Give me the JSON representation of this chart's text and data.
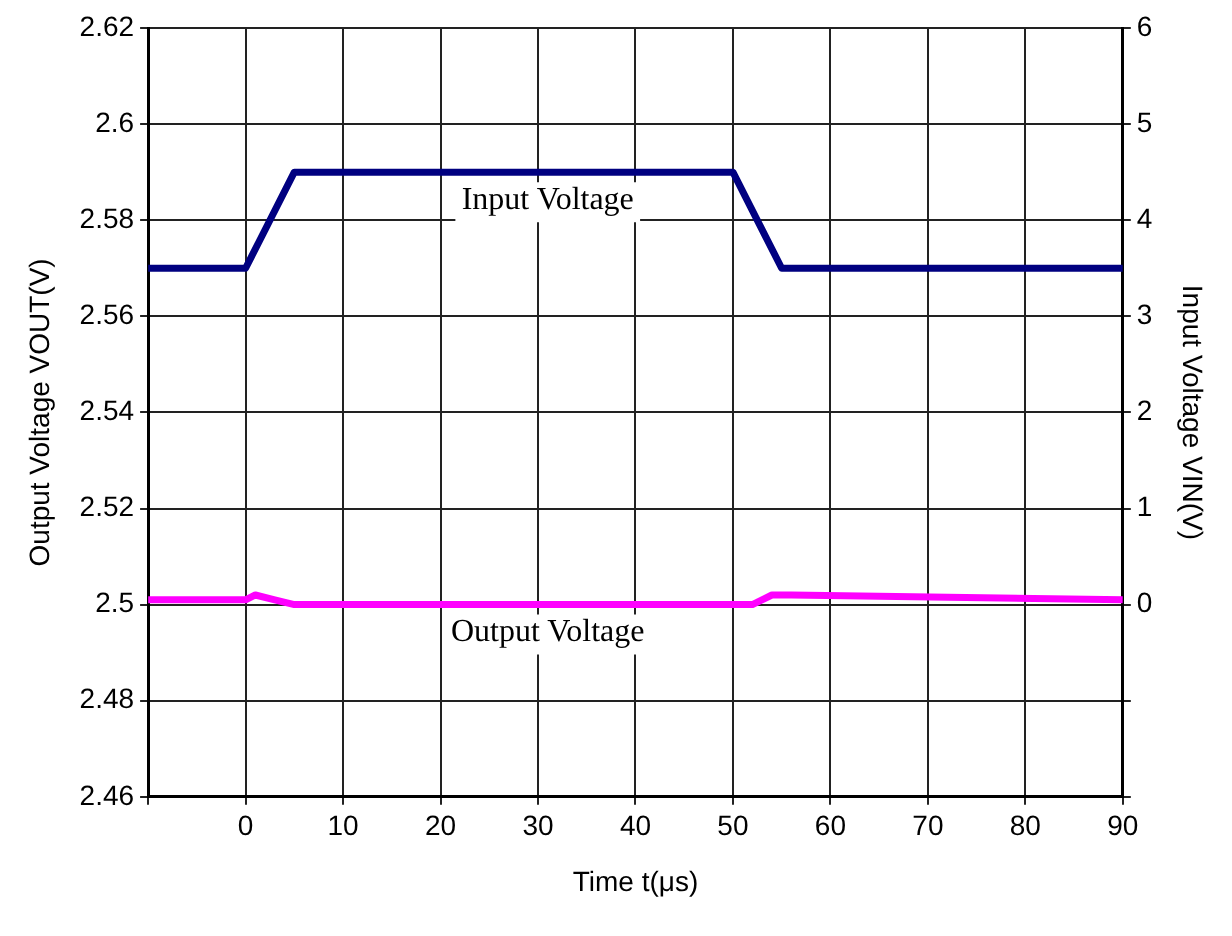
{
  "chart_data": {
    "type": "line",
    "xlabel": "Time t(μs)",
    "ylabel": "Output Voltage VOUT(V)",
    "y2label": "Input Voltage VIN(V)",
    "xlim": [
      -10,
      90
    ],
    "xticks": [
      {
        "value": -10,
        "label": null
      },
      0,
      10,
      20,
      30,
      40,
      50,
      60,
      70,
      80,
      90
    ],
    "ylim": [
      2.46,
      2.62
    ],
    "yticks": [
      2.46,
      2.48,
      2.5,
      2.52,
      2.54,
      2.56,
      2.58,
      2.6,
      2.62
    ],
    "y2lim": [
      -2,
      6
    ],
    "y2ticks": [
      {
        "value": -2,
        "label": null
      },
      {
        "value": -1,
        "label": null
      },
      0,
      1,
      2,
      3,
      4,
      5,
      6
    ],
    "grid": true,
    "legend": false,
    "marker": "none",
    "line_style": "solid",
    "series": [
      {
        "name": "Input Voltage",
        "color": "#000080",
        "axis": "y2",
        "x": [
          -10,
          0,
          5,
          50,
          55,
          90
        ],
        "values": [
          3.5,
          3.5,
          4.5,
          4.5,
          3.5,
          3.5
        ]
      },
      {
        "name": "Output Voltage",
        "color": "#ff00ff",
        "axis": "y",
        "x": [
          -10,
          0,
          1,
          3,
          5,
          50,
          52,
          54,
          56,
          90
        ],
        "values": [
          2.501,
          2.501,
          2.502,
          2.501,
          2.5,
          2.5,
          2.5,
          2.502,
          2.502,
          2.501
        ]
      }
    ]
  }
}
